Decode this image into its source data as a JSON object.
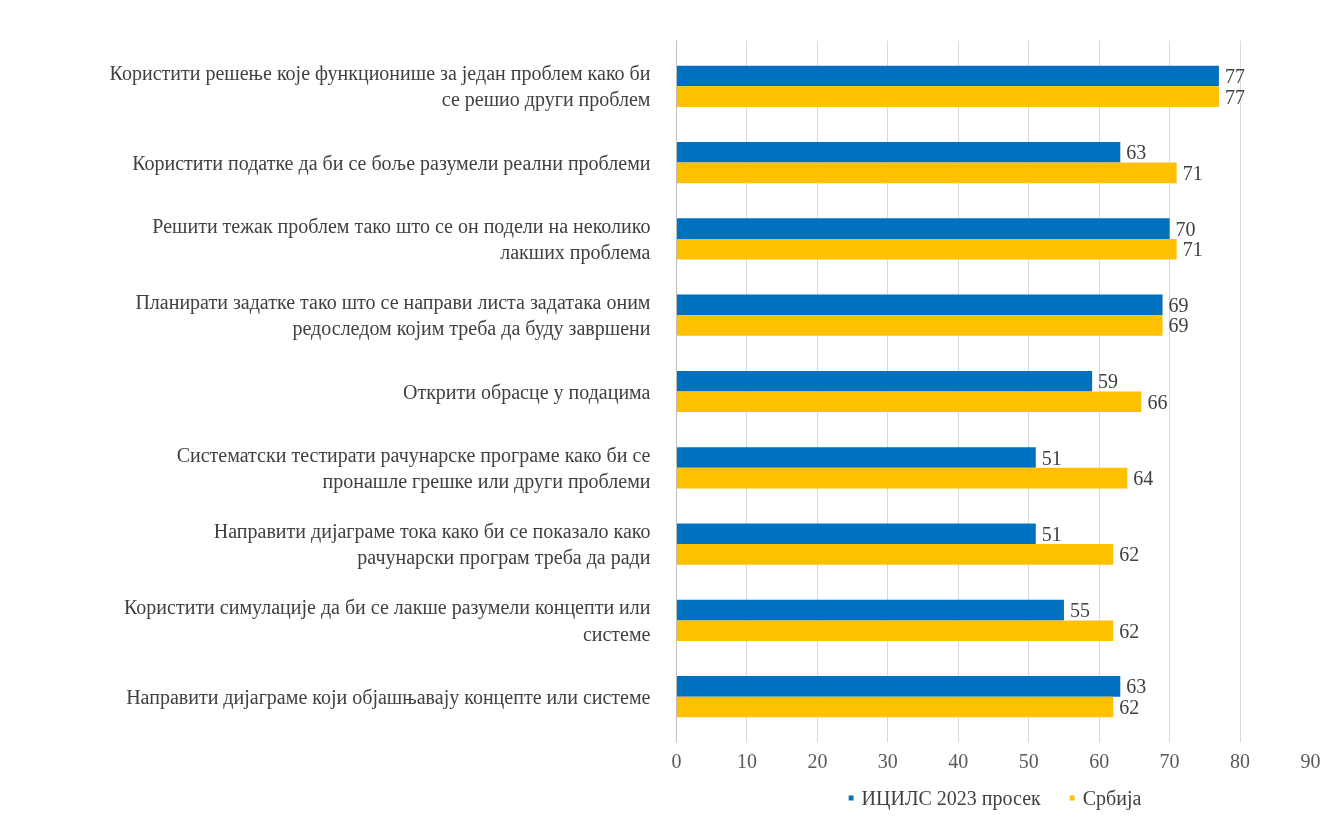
{
  "chart_data": {
    "type": "bar",
    "orientation": "horizontal",
    "categories": [
      "Користити решење које функционише за један проблем како би се решио други проблем",
      "Користити податке да би се боље разумели реални проблеми",
      "Решити тежак проблем тако што се он подели на неколико лакших проблема",
      "Планирати задатке тако што се направи листа задатака оним редоследом којим треба да буду завршени",
      "Открити обрасце у подацима",
      "Систематски тестирати рачунарске програме како би се пронашле грешке или други проблеми",
      "Направити дијаграме тока како би се показало како рачунарски програм треба да ради",
      "Користити симулације да би се лакше разумели концепти или системе",
      "Направити дијаграме који објашњавају концепте или системе"
    ],
    "series": [
      {
        "name": "ИЦИЛС 2023 просек",
        "color": "#0070c0",
        "values": [
          77,
          63,
          70,
          69,
          59,
          51,
          51,
          55,
          63
        ]
      },
      {
        "name": "Србија",
        "color": "#ffc000",
        "values": [
          77,
          71,
          71,
          69,
          66,
          64,
          62,
          62,
          62
        ]
      }
    ],
    "xlim": [
      0,
      90
    ],
    "xticks": [
      0,
      10,
      20,
      30,
      40,
      50,
      60,
      70,
      80,
      90
    ],
    "grid": "x",
    "legend": "bottom",
    "data_labels": true
  }
}
